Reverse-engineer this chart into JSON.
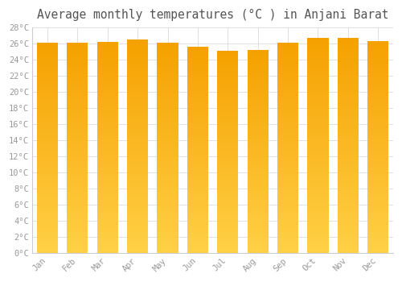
{
  "title": "Average monthly temperatures (°C ) in Anjani Barat",
  "months": [
    "Jan",
    "Feb",
    "Mar",
    "Apr",
    "May",
    "Jun",
    "Jul",
    "Aug",
    "Sep",
    "Oct",
    "Nov",
    "Dec"
  ],
  "values": [
    26.1,
    26.1,
    26.2,
    26.5,
    26.1,
    25.6,
    25.1,
    25.2,
    26.1,
    26.7,
    26.7,
    26.3
  ],
  "bar_color_top": "#F5A000",
  "bar_color_bottom": "#FFD045",
  "ylim": [
    0,
    28
  ],
  "ytick_step": 2,
  "background_color": "#ffffff",
  "grid_color": "#e0e0e0",
  "text_color": "#999999",
  "title_color": "#555555",
  "title_fontsize": 10.5,
  "tick_fontsize": 7.5,
  "bar_width": 0.7,
  "spine_color": "#cccccc"
}
